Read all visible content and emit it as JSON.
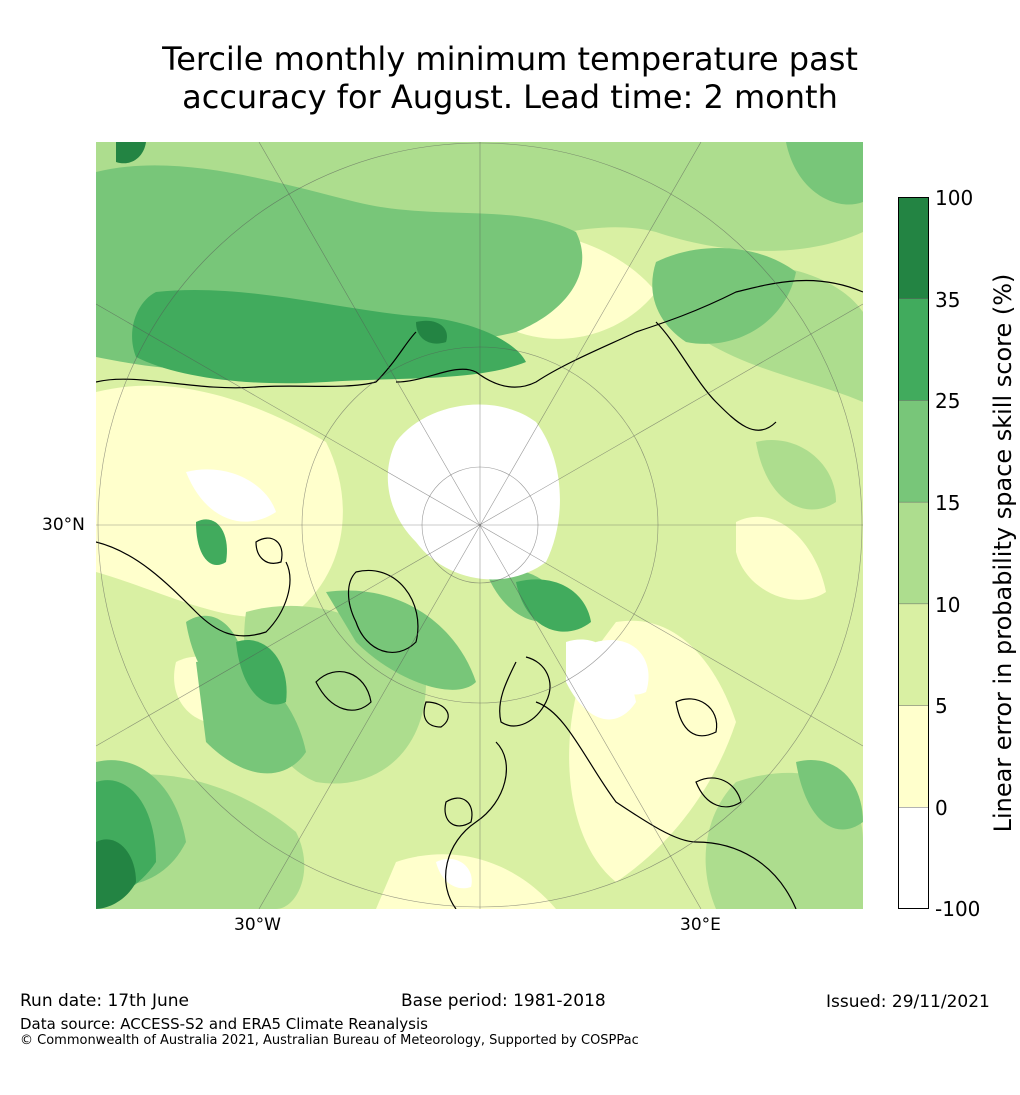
{
  "title_line1": "Tercile monthly minimum temperature past",
  "title_line2": "accuracy for August. Lead time: 2 month",
  "map": {
    "lon_labels": [
      "30°W",
      "30°E"
    ],
    "lat_labels": [
      "30°N"
    ]
  },
  "colorbar": {
    "label": "Linear error in probability space skill score (%)",
    "ticks": [
      "100",
      "35",
      "25",
      "15",
      "10",
      "5",
      "0",
      "-100"
    ],
    "colors": [
      "#238443",
      "#41ab5d",
      "#78c679",
      "#addd8e",
      "#d9f0a3",
      "#ffffcc",
      "#ffffff"
    ]
  },
  "footer": {
    "run_date": "Run date: 17th June",
    "base_period": "Base period: 1981-2018",
    "issued": "Issued: 29/11/2021",
    "data_source": "Data source: ACCESS-S2 and ERA5 Climate Reanalysis",
    "copyright": "© Commonwealth of Australia 2021, Australian Bureau of Meteorology, Supported by COSPPac"
  }
}
